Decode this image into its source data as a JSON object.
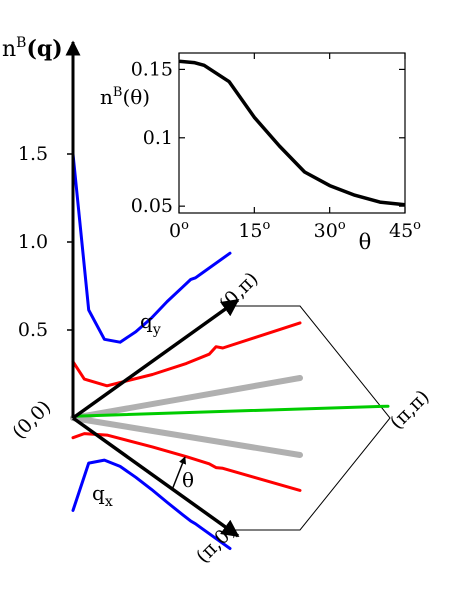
{
  "chart_data": [
    {
      "type": "line",
      "title": "",
      "ylabel": "n^B(q)",
      "ylabel_parts": {
        "base": "n",
        "sup": "B",
        "arg": "(q)"
      },
      "y_ticks": [
        "0.5",
        "1.0",
        "1.5"
      ],
      "ylim": [
        0,
        1.6
      ],
      "directions": [
        {
          "label": "q_y",
          "label_parts": {
            "base": "q",
            "sub": "y"
          },
          "from": "(0,0)",
          "to": "(0,π)"
        },
        {
          "label": "q_x",
          "label_parts": {
            "base": "q",
            "sub": "x"
          },
          "from": "(0,0)",
          "to": "(π,0)"
        }
      ],
      "corners": [
        "(0,0)",
        "(0,π)",
        "(π,π)",
        "(π,0)"
      ],
      "angle_label": "θ",
      "series": [
        {
          "color": "#0000ff",
          "paths": [
            [
              [
                0.0,
                1.5
              ],
              [
                0.1,
                0.55
              ],
              [
                0.2,
                0.32
              ],
              [
                0.3,
                0.24
              ],
              [
                0.4,
                0.235
              ],
              [
                0.5,
                0.25
              ],
              [
                0.6,
                0.28
              ],
              [
                0.7,
                0.3
              ],
              [
                0.75,
                0.31
              ],
              [
                0.78,
                0.3
              ],
              [
                0.82,
                0.3
              ],
              [
                1.0,
                0.3
              ]
            ]
          ]
        },
        {
          "color": "#ff0000",
          "paths": [
            [
              [
                0.0,
                0.32
              ],
              [
                0.05,
                0.2
              ],
              [
                0.15,
                0.12
              ],
              [
                0.35,
                0.1
              ],
              [
                0.5,
                0.1
              ],
              [
                0.6,
                0.11
              ],
              [
                0.63,
                0.14
              ],
              [
                0.66,
                0.12
              ],
              [
                0.8,
                0.12
              ],
              [
                1.0,
                0.12
              ]
            ]
          ]
        },
        {
          "color": "#00cc00",
          "paths": [
            [
              [
                0.0,
                0.01
              ],
              [
                1.0,
                0.01
              ]
            ]
          ]
        },
        {
          "color": "#b0b0b0",
          "paths": [
            [
              [
                0.0,
                0.0
              ],
              [
                1.0,
                0.0
              ]
            ]
          ]
        }
      ]
    },
    {
      "type": "line",
      "title": "",
      "xlabel": "θ",
      "ylabel": "n^B(θ)",
      "ylabel_parts": {
        "base": "n",
        "sup": "B",
        "arg": "(θ)"
      },
      "x": [
        0,
        3,
        5,
        10,
        15,
        20,
        25,
        30,
        35,
        40,
        45
      ],
      "values": [
        0.156,
        0.155,
        0.153,
        0.141,
        0.115,
        0.094,
        0.075,
        0.065,
        0.058,
        0.053,
        0.051
      ],
      "xlim": [
        0,
        45
      ],
      "ylim": [
        0.045,
        0.162
      ],
      "x_ticks": [
        {
          "value": 0,
          "base": "0",
          "sup": "o"
        },
        {
          "value": 15,
          "base": "15",
          "sup": "o"
        },
        {
          "value": 30,
          "base": "30",
          "sup": "o"
        },
        {
          "value": 45,
          "base": "45",
          "sup": "o"
        }
      ],
      "y_ticks": [
        {
          "value": 0.05,
          "label": "0.05"
        },
        {
          "value": 0.1,
          "label": "0.1"
        },
        {
          "value": 0.15,
          "label": "0.15"
        }
      ]
    }
  ]
}
